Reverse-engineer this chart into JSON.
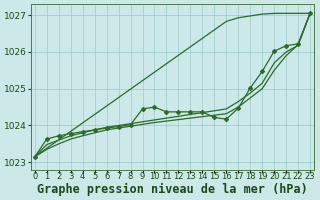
{
  "title": "Graphe pression niveau de la mer (hPa)",
  "x_labels": [
    "0",
    "1",
    "2",
    "3",
    "4",
    "5",
    "6",
    "7",
    "8",
    "9",
    "10",
    "11",
    "12",
    "13",
    "14",
    "15",
    "16",
    "17",
    "18",
    "19",
    "20",
    "21",
    "22",
    "23"
  ],
  "x_values": [
    0,
    1,
    2,
    3,
    4,
    5,
    6,
    7,
    8,
    9,
    10,
    11,
    12,
    13,
    14,
    15,
    16,
    17,
    18,
    19,
    20,
    21,
    22,
    23
  ],
  "ylim": [
    1022.8,
    1027.3
  ],
  "yticks": [
    1023,
    1024,
    1025,
    1026,
    1027
  ],
  "line_upper": [
    1023.15,
    1023.38,
    1023.61,
    1023.84,
    1024.07,
    1024.3,
    1024.53,
    1024.76,
    1024.99,
    1025.22,
    1025.45,
    1025.68,
    1025.91,
    1026.14,
    1026.37,
    1026.6,
    1026.83,
    1026.93,
    1026.98,
    1027.03,
    1027.05,
    1027.05,
    1027.05,
    1027.05
  ],
  "line_lower": [
    1023.15,
    1023.35,
    1023.5,
    1023.63,
    1023.72,
    1023.8,
    1023.88,
    1023.93,
    1023.98,
    1024.03,
    1024.08,
    1024.12,
    1024.16,
    1024.2,
    1024.24,
    1024.28,
    1024.32,
    1024.5,
    1024.75,
    1025.0,
    1025.5,
    1025.9,
    1026.2,
    1027.05
  ],
  "measured": [
    1023.15,
    1023.63,
    1023.72,
    1023.78,
    1023.83,
    1023.88,
    1023.93,
    1023.97,
    1024.02,
    1024.45,
    1024.5,
    1024.37,
    1024.37,
    1024.37,
    1024.37,
    1024.22,
    1024.17,
    1024.47,
    1025.02,
    1025.47,
    1026.02,
    1026.17,
    1026.22,
    1027.05
  ],
  "line_mid": [
    1023.15,
    1023.48,
    1023.6,
    1023.72,
    1023.8,
    1023.88,
    1023.95,
    1024.0,
    1024.05,
    1024.1,
    1024.15,
    1024.2,
    1024.25,
    1024.3,
    1024.35,
    1024.4,
    1024.45,
    1024.65,
    1024.88,
    1025.15,
    1025.7,
    1026.0,
    1026.18,
    1027.05
  ],
  "color": "#2d6a2d",
  "bg_color": "#cce8e8",
  "grid_color": "#99cccc",
  "text_color": "#1a4a1a",
  "title_fontsize": 8.5,
  "tick_fontsize": 6.5
}
